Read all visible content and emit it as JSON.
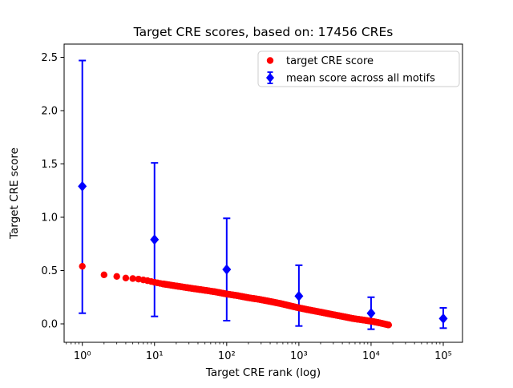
{
  "chart_data": {
    "type": "scatter",
    "title": "Target CRE scores, based on: 17456 CREs",
    "xlabel": "Target CRE rank (log)",
    "ylabel": "Target CRE score",
    "based_on_count": 17456,
    "x_scale": "log",
    "xlim_log10": [
      -0.25,
      5.27
    ],
    "ylim": [
      -0.17,
      2.62
    ],
    "grid": false,
    "x_tick_values": [
      1,
      10,
      100,
      1000,
      10000,
      100000
    ],
    "x_tick_labels": [
      "10⁰",
      "10¹",
      "10²",
      "10³",
      "10⁴",
      "10⁵"
    ],
    "y_tick_values": [
      0.0,
      0.5,
      1.0,
      1.5,
      2.0,
      2.5
    ],
    "y_tick_labels": [
      "0.0",
      "0.5",
      "1.0",
      "1.5",
      "2.0",
      "2.5"
    ],
    "legend": {
      "position": "upper right"
    },
    "series": [
      {
        "name": "target CRE score",
        "marker": "circle",
        "color": "#ff0000",
        "points_shown": 17456,
        "curve_samples": [
          [
            1,
            0.54
          ],
          [
            2,
            0.46
          ],
          [
            3,
            0.445
          ],
          [
            4,
            0.43
          ],
          [
            5,
            0.425
          ],
          [
            6,
            0.42
          ],
          [
            8,
            0.405
          ],
          [
            10,
            0.39
          ],
          [
            13,
            0.375
          ],
          [
            18,
            0.36
          ],
          [
            25,
            0.345
          ],
          [
            35,
            0.33
          ],
          [
            50,
            0.315
          ],
          [
            70,
            0.3
          ],
          [
            100,
            0.28
          ],
          [
            140,
            0.265
          ],
          [
            200,
            0.245
          ],
          [
            280,
            0.23
          ],
          [
            400,
            0.21
          ],
          [
            560,
            0.19
          ],
          [
            800,
            0.165
          ],
          [
            1000,
            0.15
          ],
          [
            1400,
            0.13
          ],
          [
            2000,
            0.11
          ],
          [
            2800,
            0.09
          ],
          [
            4000,
            0.07
          ],
          [
            5600,
            0.05
          ],
          [
            8000,
            0.035
          ],
          [
            10000,
            0.025
          ],
          [
            13000,
            0.01
          ],
          [
            17456,
            -0.01
          ]
        ]
      },
      {
        "name": "mean score across all motifs",
        "marker": "diamond",
        "color": "#0000ff",
        "x": [
          1,
          10,
          100,
          1000,
          10000,
          100000
        ],
        "mean": [
          1.29,
          0.79,
          0.51,
          0.26,
          0.1,
          0.05
        ],
        "err_low": [
          0.1,
          0.07,
          0.03,
          -0.02,
          -0.05,
          -0.04
        ],
        "err_high": [
          2.47,
          1.51,
          0.99,
          0.55,
          0.25,
          0.15
        ]
      }
    ]
  }
}
